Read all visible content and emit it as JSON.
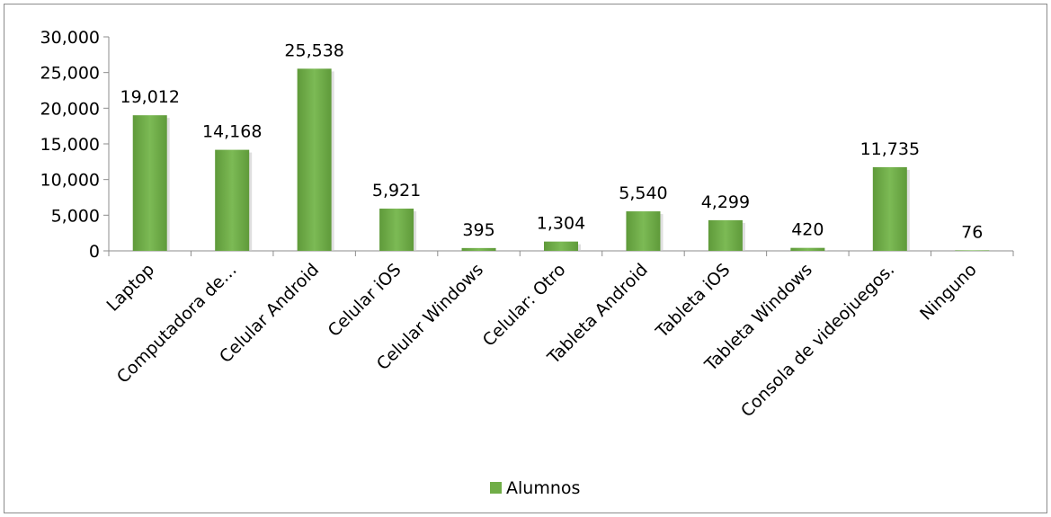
{
  "chart_data": {
    "type": "bar",
    "categories": [
      "Laptop",
      "Computadora de…",
      "Celular Android",
      "Celular iOS",
      "Celular Windows",
      "Celular: Otro",
      "Tableta Android",
      "Tableta iOS",
      "Tableta Windows",
      "Consola de videojuegos.",
      "Ninguno"
    ],
    "series": [
      {
        "name": "Alumnos",
        "values": [
          19012,
          14168,
          25538,
          5921,
          395,
          1304,
          5540,
          4299,
          420,
          11735,
          76
        ],
        "labels": [
          "19,012",
          "14,168",
          "25,538",
          "5,921",
          "395",
          "1,304",
          "5,540",
          "4,299",
          "420",
          "11,735",
          "76"
        ]
      }
    ],
    "ylim": [
      0,
      30000
    ],
    "yticks": [
      0,
      5000,
      10000,
      15000,
      20000,
      25000,
      30000
    ],
    "ytick_labels": [
      "0",
      "5,000",
      "10,000",
      "15,000",
      "20,000",
      "25,000",
      "30,000"
    ],
    "grid": false,
    "legend": "bottom",
    "bar_color": "#70ad47"
  }
}
